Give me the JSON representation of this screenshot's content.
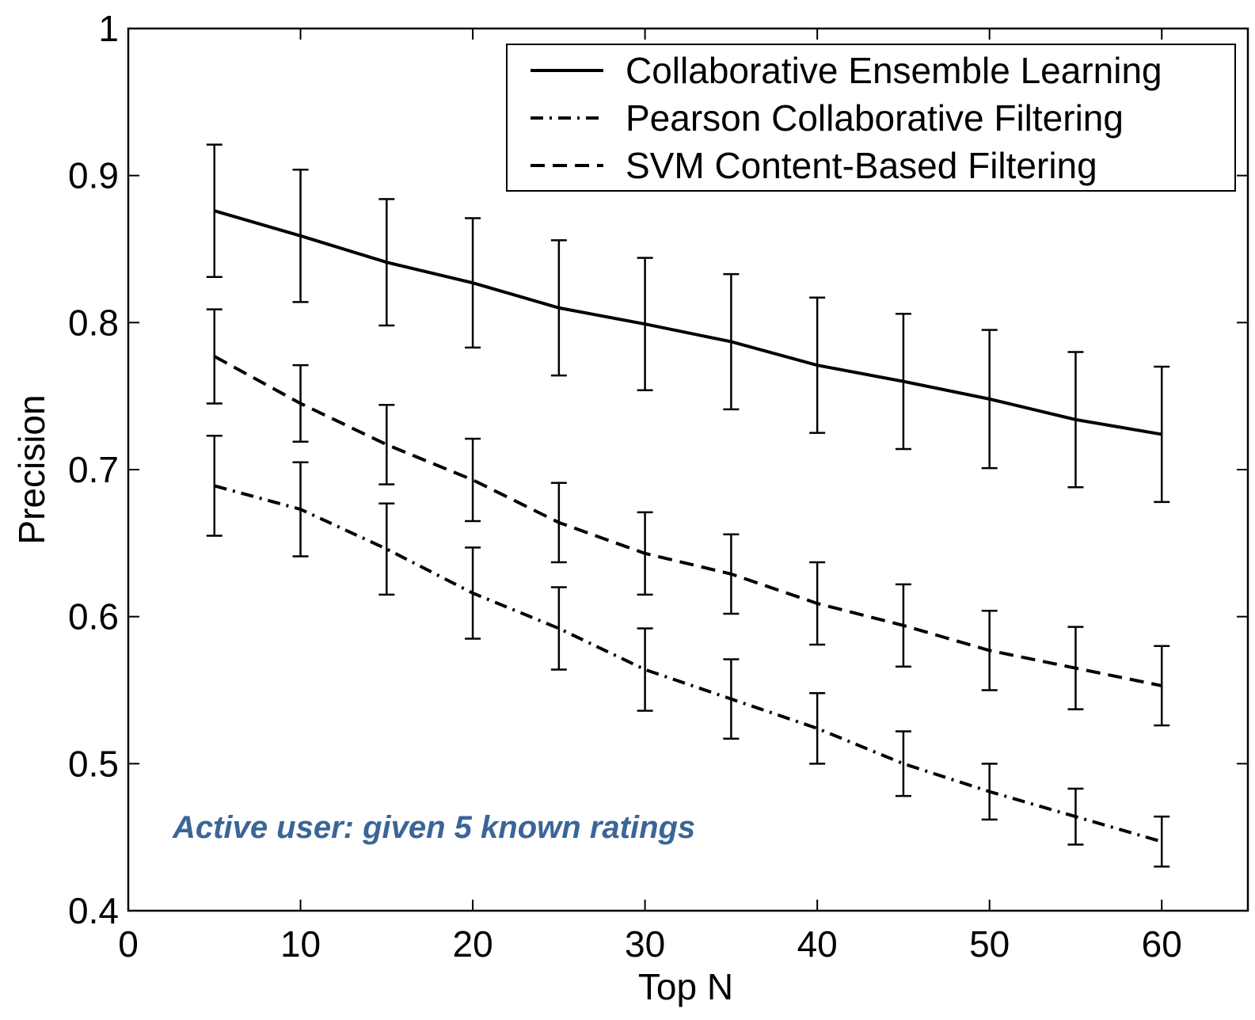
{
  "chart_data": {
    "type": "line",
    "x_label": "Top N",
    "y_label": "Precision",
    "annotation": "Active user: given 5 known ratings",
    "x": [
      5,
      10,
      15,
      20,
      25,
      30,
      35,
      40,
      45,
      50,
      55,
      60
    ],
    "xlim": [
      0,
      65
    ],
    "xticks": [
      0,
      10,
      20,
      30,
      40,
      50,
      60
    ],
    "ylim": [
      0.4,
      1
    ],
    "yticks": [
      0.4,
      0.5,
      0.6,
      0.7,
      0.8,
      0.9,
      1
    ],
    "legend": "upper right",
    "series": [
      {
        "name": "Collaborative Ensemble Learning",
        "color": "#000000",
        "style": "solid",
        "values": [
          0.876,
          0.859,
          0.841,
          0.827,
          0.81,
          0.799,
          0.787,
          0.771,
          0.76,
          0.748,
          0.734,
          0.724
        ],
        "errors": [
          0.045,
          0.045,
          0.043,
          0.044,
          0.046,
          0.045,
          0.046,
          0.046,
          0.046,
          0.047,
          0.046,
          0.046
        ]
      },
      {
        "name": "Pearson Collaborative Filtering",
        "color": "#000000",
        "style": "dashdot",
        "values": [
          0.689,
          0.673,
          0.646,
          0.616,
          0.592,
          0.564,
          0.544,
          0.524,
          0.5,
          0.481,
          0.464,
          0.447
        ],
        "errors": [
          0.034,
          0.032,
          0.031,
          0.031,
          0.028,
          0.028,
          0.027,
          0.024,
          0.022,
          0.019,
          0.019,
          0.017
        ]
      },
      {
        "name": "SVM Content-Based Filtering",
        "color": "#000000",
        "style": "dashed",
        "values": [
          0.777,
          0.745,
          0.717,
          0.693,
          0.664,
          0.643,
          0.629,
          0.609,
          0.594,
          0.577,
          0.565,
          0.553
        ],
        "errors": [
          0.032,
          0.026,
          0.027,
          0.028,
          0.027,
          0.028,
          0.027,
          0.028,
          0.028,
          0.027,
          0.028,
          0.027
        ]
      }
    ]
  }
}
